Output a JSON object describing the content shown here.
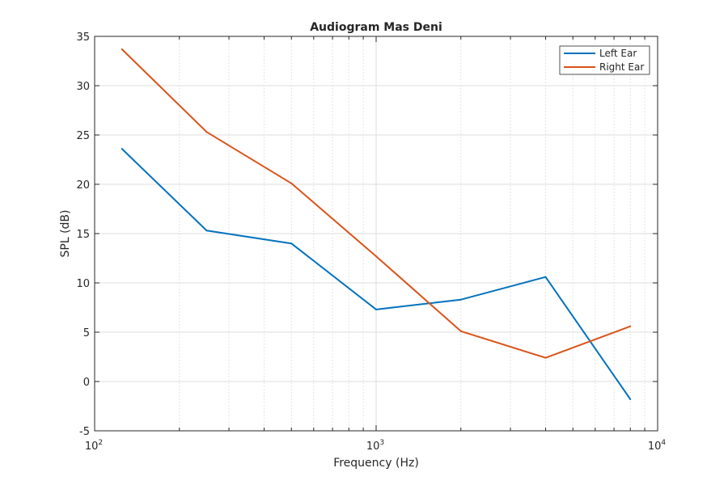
{
  "chart_data": {
    "type": "line",
    "title": "Audiogram Mas Deni",
    "xlabel": "Frequency (Hz)",
    "ylabel": "SPL (dB)",
    "xscale": "log",
    "xlim": [
      100,
      10000
    ],
    "ylim": [
      -5,
      35
    ],
    "grid": true,
    "minor_grid_x": true,
    "legend_position": "top-right",
    "x": [
      125,
      250,
      500,
      1000,
      2000,
      4000,
      8000
    ],
    "x_ticks": [
      {
        "base": "10",
        "exp": "2"
      },
      {
        "base": "10",
        "exp": "3"
      },
      {
        "base": "10",
        "exp": "4"
      }
    ],
    "y_ticks": [
      "-5",
      "0",
      "5",
      "10",
      "15",
      "20",
      "25",
      "30",
      "35"
    ],
    "series": [
      {
        "name": "Left Ear",
        "color": "#0072BD",
        "values": [
          23.6,
          15.3,
          14.0,
          7.3,
          8.3,
          10.6,
          -1.8
        ]
      },
      {
        "name": "Right Ear",
        "color": "#D95319",
        "values": [
          33.7,
          25.3,
          20.1,
          12.7,
          5.1,
          2.4,
          5.6
        ]
      }
    ]
  }
}
